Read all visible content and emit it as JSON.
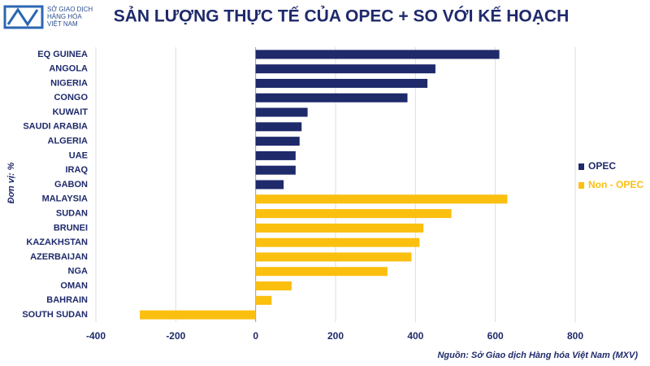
{
  "logo": {
    "lines": [
      "SỞ GIAO DỊCH",
      "HÀNG HÓA",
      "VIỆT NAM"
    ]
  },
  "chart_data": {
    "type": "hbar",
    "title": "SẢN LƯỢNG THỰC TẾ CỦA OPEC + SO VỚI KẾ HOẠCH",
    "y_label": "Đơn vị: %",
    "source": "Nguồn: Sở Giao dịch Hàng hóa Việt Nam (MXV)",
    "categories": [
      "EQ GUINEA",
      "ANGOLA",
      "NIGERIA",
      "CONGO",
      "KUWAIT",
      "SAUDI ARABIA",
      "ALGERIA",
      "UAE",
      "IRAQ",
      "GABON",
      "MALAYSIA",
      "SUDAN",
      "BRUNEI",
      "KAZAKHSTAN",
      "AZERBAIJAN",
      "NGA",
      "OMAN",
      "BAHRAIN",
      "SOUTH SUDAN"
    ],
    "series": [
      {
        "name": "OPEC",
        "color": "#1f2a6b",
        "values": [
          610,
          450,
          430,
          380,
          130,
          115,
          110,
          100,
          100,
          70,
          null,
          null,
          null,
          null,
          null,
          null,
          null,
          null,
          null
        ]
      },
      {
        "name": "Non - OPEC",
        "color": "#fbbf10",
        "values": [
          null,
          null,
          null,
          null,
          null,
          null,
          null,
          null,
          null,
          null,
          630,
          490,
          420,
          410,
          390,
          330,
          90,
          40,
          -290
        ]
      }
    ],
    "xlim": [
      -400,
      800
    ],
    "xticks": [
      -400,
      -200,
      0,
      200,
      400,
      600,
      800
    ],
    "grid": true,
    "legend": "right"
  }
}
